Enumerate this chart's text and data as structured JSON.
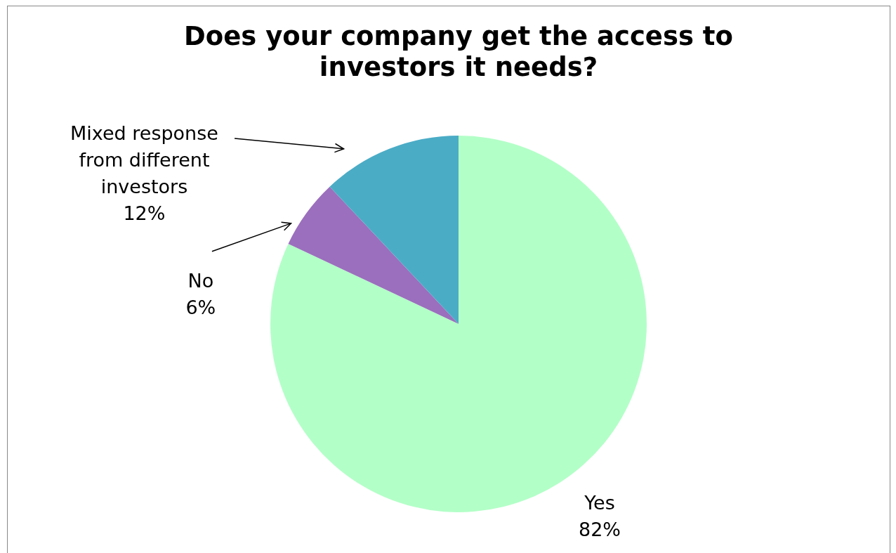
{
  "chart_data": {
    "type": "pie",
    "title": "Does your company get the access to investors it needs?",
    "categories": [
      "Yes",
      "No",
      "Mixed response from different investors"
    ],
    "values": [
      82,
      6,
      12
    ],
    "colors": [
      "#b3ffc8",
      "#9b6fbd",
      "#4bacc6"
    ],
    "value_labels": [
      "82%",
      "6%",
      "12%"
    ],
    "legend": false
  }
}
